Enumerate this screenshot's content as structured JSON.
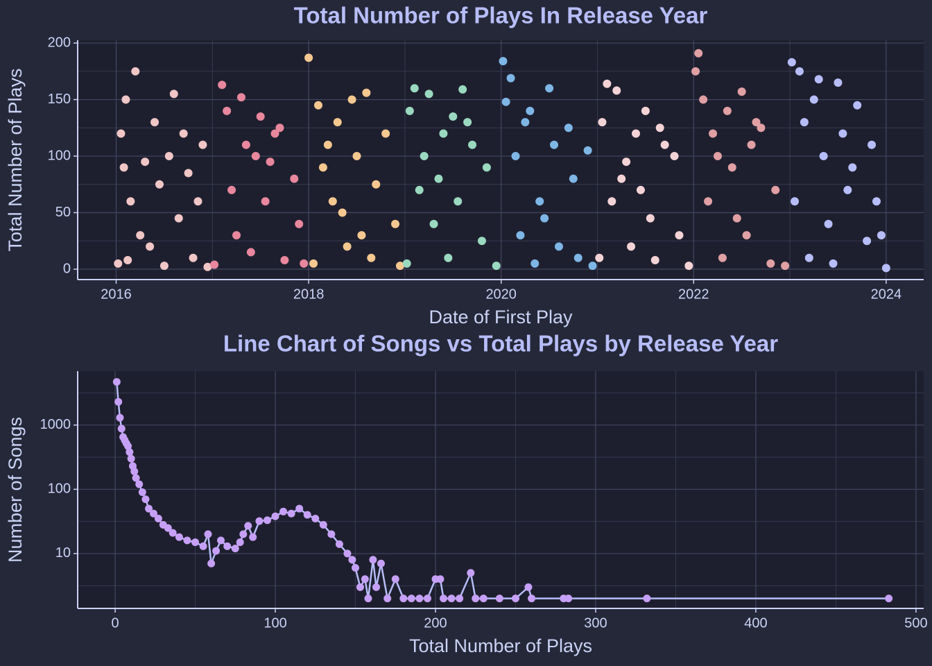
{
  "chart_data": [
    {
      "type": "scatter",
      "title": "Total Number of Plays In Release Year",
      "x_label": "Date of First Play",
      "y_label": "Total Number of Plays",
      "xlim": [
        2015.6,
        2024.39
      ],
      "xticks": [
        2016,
        2018,
        2020,
        2022,
        2024
      ],
      "ylim": [
        -9.2,
        202.5
      ],
      "yticks": [
        0,
        50,
        100,
        150,
        200
      ],
      "grid": true,
      "series": [
        {
          "color": "#f0c6c6",
          "x": [
            2016.02,
            2016.05,
            2016.1,
            2016.2,
            2016.15,
            2016.3,
            2016.35,
            2016.4,
            2016.5,
            2016.55,
            2016.6,
            2016.65,
            2016.75,
            2016.8,
            2016.9,
            2016.95,
            2016.45,
            2016.25,
            2016.12,
            2016.7,
            2016.85,
            2016.08
          ],
          "values": [
            5,
            120,
            150,
            175,
            60,
            95,
            20,
            130,
            3,
            100,
            155,
            45,
            85,
            10,
            110,
            2,
            75,
            30,
            8,
            120,
            60,
            90
          ]
        },
        {
          "color": "#e8879d",
          "x": [
            2017.02,
            2017.1,
            2017.15,
            2017.2,
            2017.3,
            2017.35,
            2017.4,
            2017.5,
            2017.55,
            2017.6,
            2017.7,
            2017.75,
            2017.85,
            2017.9,
            2017.95,
            2017.25,
            2017.45,
            2017.65
          ],
          "values": [
            4,
            163,
            140,
            70,
            152,
            110,
            15,
            135,
            60,
            95,
            125,
            8,
            80,
            40,
            5,
            30,
            100,
            120
          ]
        },
        {
          "color": "#f5c890",
          "x": [
            2018.0,
            2018.05,
            2018.1,
            2018.2,
            2018.25,
            2018.3,
            2018.4,
            2018.45,
            2018.5,
            2018.6,
            2018.65,
            2018.7,
            2018.8,
            2018.9,
            2018.95,
            2018.15,
            2018.35,
            2018.55
          ],
          "values": [
            187,
            5,
            145,
            110,
            60,
            130,
            20,
            150,
            100,
            156,
            10,
            75,
            120,
            40,
            3,
            90,
            50,
            30
          ]
        },
        {
          "color": "#9ad9c0",
          "x": [
            2019.02,
            2019.05,
            2019.1,
            2019.2,
            2019.25,
            2019.3,
            2019.4,
            2019.45,
            2019.5,
            2019.55,
            2019.6,
            2019.7,
            2019.8,
            2019.85,
            2019.95,
            2019.15,
            2019.35,
            2019.65
          ],
          "values": [
            5,
            140,
            160,
            100,
            155,
            40,
            120,
            10,
            135,
            60,
            159,
            110,
            25,
            90,
            3,
            70,
            80,
            130
          ]
        },
        {
          "color": "#7eb6e6",
          "x": [
            2020.02,
            2020.05,
            2020.1,
            2020.15,
            2020.2,
            2020.3,
            2020.35,
            2020.4,
            2020.5,
            2020.55,
            2020.6,
            2020.7,
            2020.75,
            2020.8,
            2020.9,
            2020.95,
            2020.25,
            2020.45
          ],
          "values": [
            184,
            148,
            169,
            100,
            30,
            140,
            5,
            60,
            160,
            110,
            20,
            125,
            80,
            10,
            105,
            3,
            130,
            45
          ]
        },
        {
          "color": "#f4d3d6",
          "x": [
            2021.02,
            2021.05,
            2021.1,
            2021.15,
            2021.2,
            2021.3,
            2021.35,
            2021.4,
            2021.5,
            2021.55,
            2021.6,
            2021.7,
            2021.8,
            2021.85,
            2021.95,
            2021.25,
            2021.45,
            2021.65
          ],
          "values": [
            10,
            130,
            164,
            60,
            158,
            95,
            20,
            120,
            140,
            45,
            8,
            110,
            100,
            30,
            3,
            80,
            70,
            125
          ]
        },
        {
          "color": "#e0a0a4",
          "x": [
            2022.02,
            2022.05,
            2022.1,
            2022.15,
            2022.2,
            2022.3,
            2022.35,
            2022.4,
            2022.5,
            2022.55,
            2022.6,
            2022.7,
            2022.8,
            2022.85,
            2022.95,
            2022.25,
            2022.45,
            2022.65
          ],
          "values": [
            175,
            191,
            150,
            60,
            120,
            10,
            140,
            90,
            157,
            30,
            110,
            125,
            5,
            70,
            3,
            100,
            45,
            130
          ]
        },
        {
          "color": "#b7bdf8",
          "x": [
            2023.02,
            2023.05,
            2023.1,
            2023.15,
            2023.2,
            2023.3,
            2023.35,
            2023.4,
            2023.5,
            2023.55,
            2023.6,
            2023.7,
            2023.8,
            2023.85,
            2023.95,
            2024.0,
            2023.25,
            2023.45,
            2023.65,
            2023.9
          ],
          "values": [
            183,
            60,
            175,
            130,
            10,
            168,
            100,
            40,
            165,
            120,
            70,
            145,
            25,
            110,
            30,
            1,
            150,
            5,
            90,
            60
          ]
        }
      ]
    },
    {
      "type": "line",
      "title": "Line Chart of Songs vs Total Plays by Release Year",
      "x_label": "Total Number of Plays",
      "y_label": "Number of Songs",
      "xlim": [
        -23.4,
        504.8
      ],
      "xticks": [
        0,
        100,
        200,
        300,
        400,
        500
      ],
      "ylim": [
        1.4,
        6900
      ],
      "yticks": [
        10,
        100,
        1000
      ],
      "log_y": true,
      "grid": true,
      "series": [
        {
          "color": "#c6a0f6",
          "line_color": "#b7bdf8",
          "x": [
            1,
            2,
            3,
            4,
            5,
            6,
            7,
            8,
            9,
            10,
            11,
            12,
            13,
            15,
            17,
            19,
            21,
            24,
            27,
            30,
            33,
            36,
            40,
            45,
            50,
            55,
            58,
            60,
            63,
            66,
            70,
            75,
            78,
            80,
            83,
            86,
            90,
            95,
            100,
            105,
            110,
            115,
            120,
            125,
            130,
            135,
            140,
            145,
            148,
            150,
            153,
            156,
            158,
            161,
            163,
            166,
            170,
            175,
            180,
            185,
            190,
            195,
            200,
            203,
            205,
            210,
            215,
            222,
            225,
            230,
            240,
            250,
            258,
            260,
            280,
            283,
            332,
            483
          ],
          "values": [
            4700,
            2300,
            1300,
            880,
            650,
            580,
            520,
            470,
            380,
            300,
            230,
            190,
            150,
            120,
            90,
            70,
            50,
            42,
            35,
            28,
            25,
            21,
            18,
            16,
            15,
            13,
            20,
            7,
            11,
            16,
            13,
            12,
            15,
            20,
            27,
            18,
            32,
            33,
            38,
            45,
            42,
            50,
            40,
            35,
            28,
            20,
            14,
            10,
            8,
            6,
            3,
            4,
            2,
            8,
            3,
            7,
            2,
            4,
            2,
            2,
            2,
            2,
            4,
            4,
            2,
            2,
            2,
            5,
            2,
            2,
            2,
            2,
            3,
            2,
            2,
            2,
            2,
            2
          ]
        }
      ]
    }
  ]
}
